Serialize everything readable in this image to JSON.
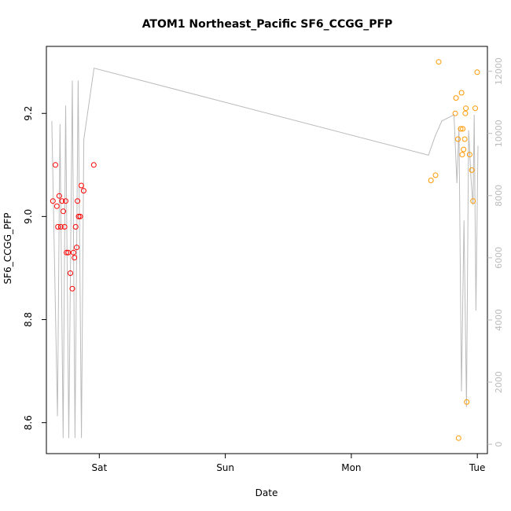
{
  "chart_data": {
    "type": "scatter",
    "title": "ATOM1 Northeast_Pacific SF6_CCGG_PFP",
    "xlabel": "Date",
    "ylabel": "SF6_CCGG_PFP",
    "x_ticks": [
      {
        "label": "Sat",
        "value": 1.0
      },
      {
        "label": "Sun",
        "value": 2.0
      },
      {
        "label": "Mon",
        "value": 3.0
      },
      {
        "label": "Tue",
        "value": 4.0
      }
    ],
    "xlim": [
      0.58,
      4.08
    ],
    "ylim": [
      8.54,
      9.33
    ],
    "y_ticks": [
      8.6,
      8.8,
      9.0,
      9.2
    ],
    "y2lim": [
      -300,
      12800
    ],
    "y2_ticks": [
      0,
      2000,
      4000,
      6000,
      8000,
      10000,
      12000
    ],
    "grid": false,
    "colors": {
      "series1": "#ff0000",
      "series2": "#ff9900",
      "altitude": "#bbbbbb",
      "axis": "#000000",
      "axis_right": "#bbbbbb"
    },
    "series": [
      {
        "values": [
          {
            "x": 0.632,
            "y": 9.03
          },
          {
            "x": 0.652,
            "y": 9.1
          },
          {
            "x": 0.663,
            "y": 9.02
          },
          {
            "x": 0.672,
            "y": 8.98
          },
          {
            "x": 0.682,
            "y": 9.04
          },
          {
            "x": 0.694,
            "y": 8.98
          },
          {
            "x": 0.704,
            "y": 9.03
          },
          {
            "x": 0.714,
            "y": 9.01
          },
          {
            "x": 0.724,
            "y": 8.98
          },
          {
            "x": 0.733,
            "y": 9.03
          },
          {
            "x": 0.74,
            "y": 8.93
          },
          {
            "x": 0.753,
            "y": 8.93
          },
          {
            "x": 0.77,
            "y": 8.89
          },
          {
            "x": 0.786,
            "y": 8.86
          },
          {
            "x": 0.795,
            "y": 8.93
          },
          {
            "x": 0.803,
            "y": 8.92
          },
          {
            "x": 0.812,
            "y": 8.98
          },
          {
            "x": 0.82,
            "y": 8.94
          },
          {
            "x": 0.827,
            "y": 9.03
          },
          {
            "x": 0.836,
            "y": 9.0
          },
          {
            "x": 0.848,
            "y": 9.0
          },
          {
            "x": 0.857,
            "y": 9.06
          },
          {
            "x": 0.876,
            "y": 9.05
          },
          {
            "x": 0.956,
            "y": 9.1
          }
        ]
      },
      {
        "values": [
          {
            "x": 3.632,
            "y": 9.07
          },
          {
            "x": 3.668,
            "y": 9.08
          },
          {
            "x": 3.693,
            "y": 9.3
          },
          {
            "x": 3.825,
            "y": 9.2
          },
          {
            "x": 3.831,
            "y": 9.23
          },
          {
            "x": 3.846,
            "y": 9.15
          },
          {
            "x": 3.851,
            "y": 8.57
          },
          {
            "x": 3.868,
            "y": 9.17
          },
          {
            "x": 3.875,
            "y": 9.24
          },
          {
            "x": 3.88,
            "y": 9.12
          },
          {
            "x": 3.884,
            "y": 9.17
          },
          {
            "x": 3.891,
            "y": 9.13
          },
          {
            "x": 3.9,
            "y": 9.15
          },
          {
            "x": 3.905,
            "y": 9.2
          },
          {
            "x": 3.909,
            "y": 9.21
          },
          {
            "x": 3.916,
            "y": 8.64
          },
          {
            "x": 3.939,
            "y": 9.12
          },
          {
            "x": 3.956,
            "y": 9.09
          },
          {
            "x": 3.966,
            "y": 9.03
          },
          {
            "x": 3.983,
            "y": 9.21
          },
          {
            "x": 3.999,
            "y": 9.28
          }
        ]
      }
    ],
    "altitude_line": [
      {
        "x": 0.623,
        "y2": 10400
      },
      {
        "x": 0.668,
        "y2": 900
      },
      {
        "x": 0.688,
        "y2": 10300
      },
      {
        "x": 0.713,
        "y2": 200
      },
      {
        "x": 0.733,
        "y2": 10900
      },
      {
        "x": 0.758,
        "y2": 200
      },
      {
        "x": 0.786,
        "y2": 11700
      },
      {
        "x": 0.807,
        "y2": 200
      },
      {
        "x": 0.832,
        "y2": 11700
      },
      {
        "x": 0.858,
        "y2": 200
      },
      {
        "x": 0.877,
        "y2": 9800
      },
      {
        "x": 0.958,
        "y2": 12100
      },
      {
        "x": 3.612,
        "y2": 9300
      },
      {
        "x": 3.664,
        "y2": 9900
      },
      {
        "x": 3.718,
        "y2": 10400
      },
      {
        "x": 3.815,
        "y2": 10600
      },
      {
        "x": 3.838,
        "y2": 8400
      },
      {
        "x": 3.854,
        "y2": 10200
      },
      {
        "x": 3.874,
        "y2": 1700
      },
      {
        "x": 3.894,
        "y2": 7200
      },
      {
        "x": 3.914,
        "y2": 1200
      },
      {
        "x": 3.931,
        "y2": 10100
      },
      {
        "x": 3.95,
        "y2": 8500
      },
      {
        "x": 3.966,
        "y2": 7700
      },
      {
        "x": 3.975,
        "y2": 10600
      },
      {
        "x": 3.989,
        "y2": 4300
      },
      {
        "x": 4.005,
        "y2": 9600
      }
    ]
  }
}
